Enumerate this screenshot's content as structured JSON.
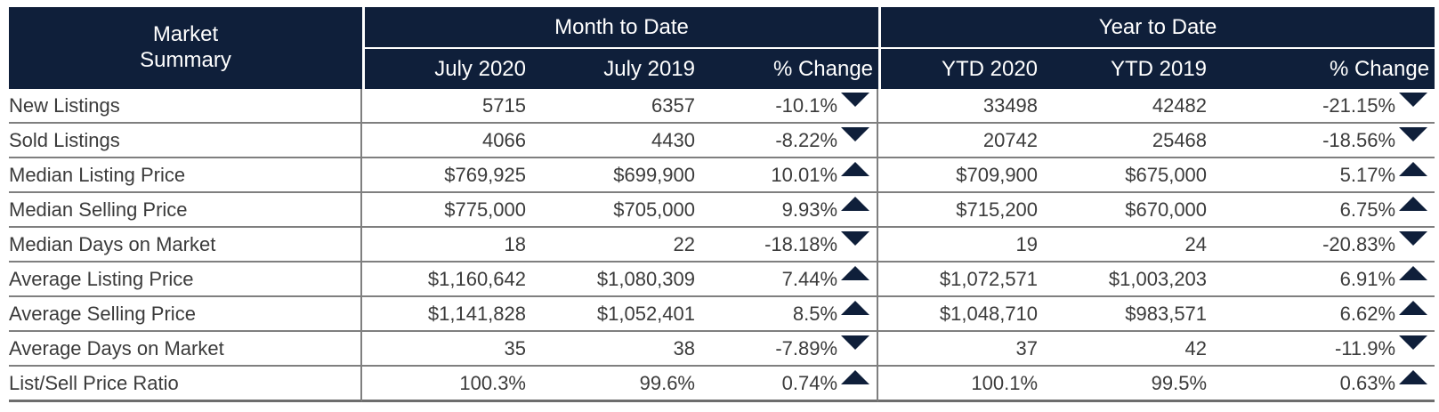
{
  "header": {
    "market_line1": "Market",
    "market_line2": "Summary",
    "mtd": "Month to Date",
    "ytd": "Year to Date",
    "cols": [
      "July 2020",
      "July 2019",
      "% Change",
      "YTD 2020",
      "YTD 2019",
      "% Change"
    ]
  },
  "rows": [
    {
      "label": "New Listings",
      "m1": "5715",
      "m2": "6357",
      "mchg": "-10.1%",
      "mdir": "down",
      "y1": "33498",
      "y2": "42482",
      "ychg": "-21.15%",
      "ydir": "down"
    },
    {
      "label": "Sold Listings",
      "m1": "4066",
      "m2": "4430",
      "mchg": "-8.22%",
      "mdir": "down",
      "y1": "20742",
      "y2": "25468",
      "ychg": "-18.56%",
      "ydir": "down"
    },
    {
      "label": "Median Listing Price",
      "m1": "$769,925",
      "m2": "$699,900",
      "mchg": "10.01%",
      "mdir": "up",
      "y1": "$709,900",
      "y2": "$675,000",
      "ychg": "5.17%",
      "ydir": "up"
    },
    {
      "label": "Median Selling Price",
      "m1": "$775,000",
      "m2": "$705,000",
      "mchg": "9.93%",
      "mdir": "up",
      "y1": "$715,200",
      "y2": "$670,000",
      "ychg": "6.75%",
      "ydir": "up"
    },
    {
      "label": "Median Days on Market",
      "m1": "18",
      "m2": "22",
      "mchg": "-18.18%",
      "mdir": "down",
      "y1": "19",
      "y2": "24",
      "ychg": "-20.83%",
      "ydir": "down"
    },
    {
      "label": "Average Listing Price",
      "m1": "$1,160,642",
      "m2": "$1,080,309",
      "mchg": "7.44%",
      "mdir": "up",
      "y1": "$1,072,571",
      "y2": "$1,003,203",
      "ychg": "6.91%",
      "ydir": "up"
    },
    {
      "label": "Average Selling Price",
      "m1": "$1,141,828",
      "m2": "$1,052,401",
      "mchg": "8.5%",
      "mdir": "up",
      "y1": "$1,048,710",
      "y2": "$983,571",
      "ychg": "6.62%",
      "ydir": "up"
    },
    {
      "label": "Average Days on Market",
      "m1": "35",
      "m2": "38",
      "mchg": "-7.89%",
      "mdir": "down",
      "y1": "37",
      "y2": "42",
      "ychg": "-11.9%",
      "ydir": "down"
    },
    {
      "label": "List/Sell Price Ratio",
      "m1": "100.3%",
      "m2": "99.6%",
      "mchg": "0.74%",
      "mdir": "up",
      "y1": "100.1%",
      "y2": "99.5%",
      "ychg": "0.63%",
      "ydir": "up"
    }
  ],
  "colors": {
    "header_bg": "#0f1f3a",
    "arrow": "#0f1f3a",
    "text": "#3b3b3b"
  }
}
